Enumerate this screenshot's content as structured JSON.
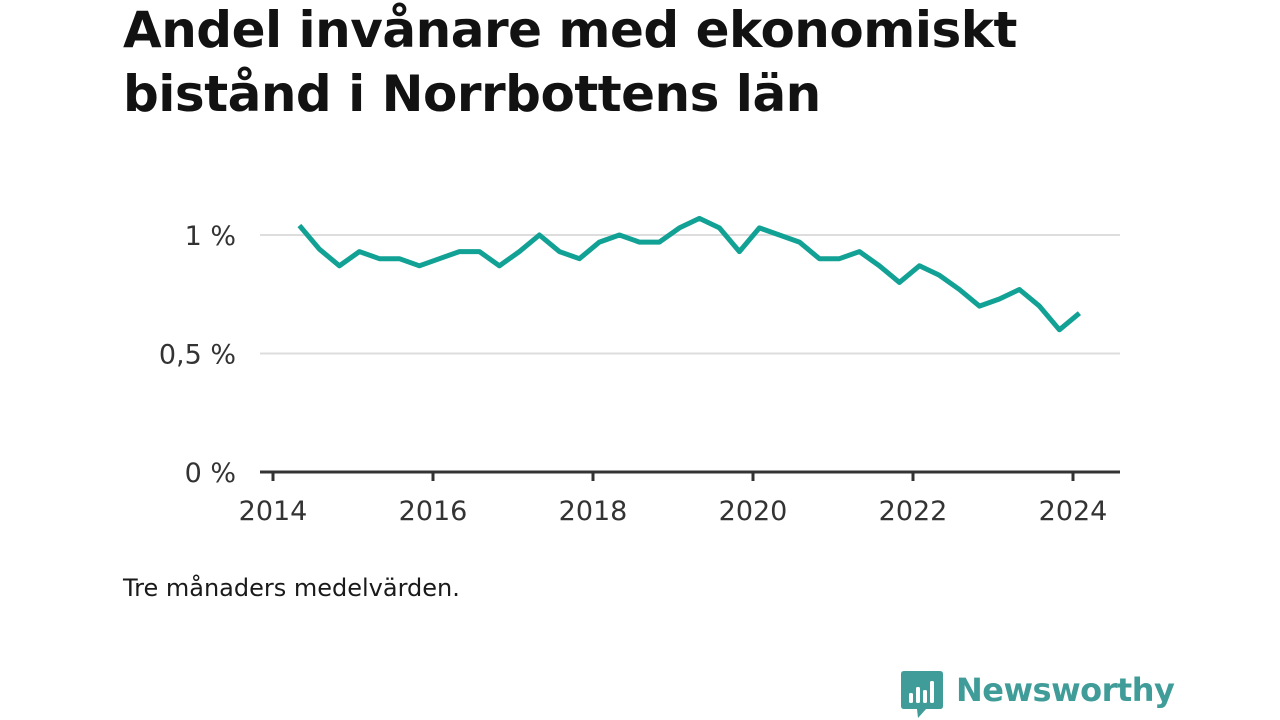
{
  "header": {
    "title": "Andel invånare med ekonomiskt bistånd i Norrbottens län"
  },
  "footer": {
    "caption": "Tre månaders medelvärden.",
    "brand": "Newsworthy",
    "brand_icon": "bar-chart-speech-bubble-icon"
  },
  "colors": {
    "line": "#12a195",
    "grid": "#dddddd",
    "axis": "#333333",
    "brand": "#3f9c98"
  },
  "chart_data": {
    "type": "line",
    "title": "Andel invånare med ekonomiskt bistånd i Norrbottens län",
    "subtitle": "",
    "xlabel": "",
    "ylabel": "",
    "ylim": [
      0,
      1.1
    ],
    "yticks": [
      0,
      0.5,
      1
    ],
    "ytick_labels": [
      "0 %",
      "0,5 %",
      "1 %"
    ],
    "xlim": [
      2014,
      2024.6
    ],
    "xticks": [
      2014,
      2016,
      2018,
      2020,
      2022,
      2024
    ],
    "xtick_labels": [
      "2014",
      "2016",
      "2018",
      "2020",
      "2022",
      "2024"
    ],
    "grid": true,
    "legend": "none",
    "series": [
      {
        "x": [
          2014.33,
          2014.58,
          2014.83,
          2015.08,
          2015.33,
          2015.58,
          2015.83,
          2016.08,
          2016.33,
          2016.58,
          2016.83,
          2017.08,
          2017.33,
          2017.58,
          2017.83,
          2018.08,
          2018.33,
          2018.58,
          2018.83,
          2019.08,
          2019.33,
          2019.58,
          2019.83,
          2020.08,
          2020.33,
          2020.58,
          2020.83,
          2021.08,
          2021.33,
          2021.58,
          2021.83,
          2022.08,
          2022.33,
          2022.58,
          2022.83,
          2023.08,
          2023.33,
          2023.58,
          2023.83,
          2024.08
        ],
        "y": [
          1.04,
          0.94,
          0.87,
          0.93,
          0.9,
          0.9,
          0.87,
          0.9,
          0.93,
          0.93,
          0.87,
          0.93,
          1.0,
          0.93,
          0.9,
          0.97,
          1.0,
          0.97,
          0.97,
          1.03,
          1.07,
          1.03,
          0.93,
          1.03,
          1.0,
          0.97,
          0.9,
          0.9,
          0.93,
          0.87,
          0.8,
          0.87,
          0.83,
          0.77,
          0.7,
          0.73,
          0.77,
          0.7,
          0.6,
          0.67
        ]
      }
    ]
  }
}
